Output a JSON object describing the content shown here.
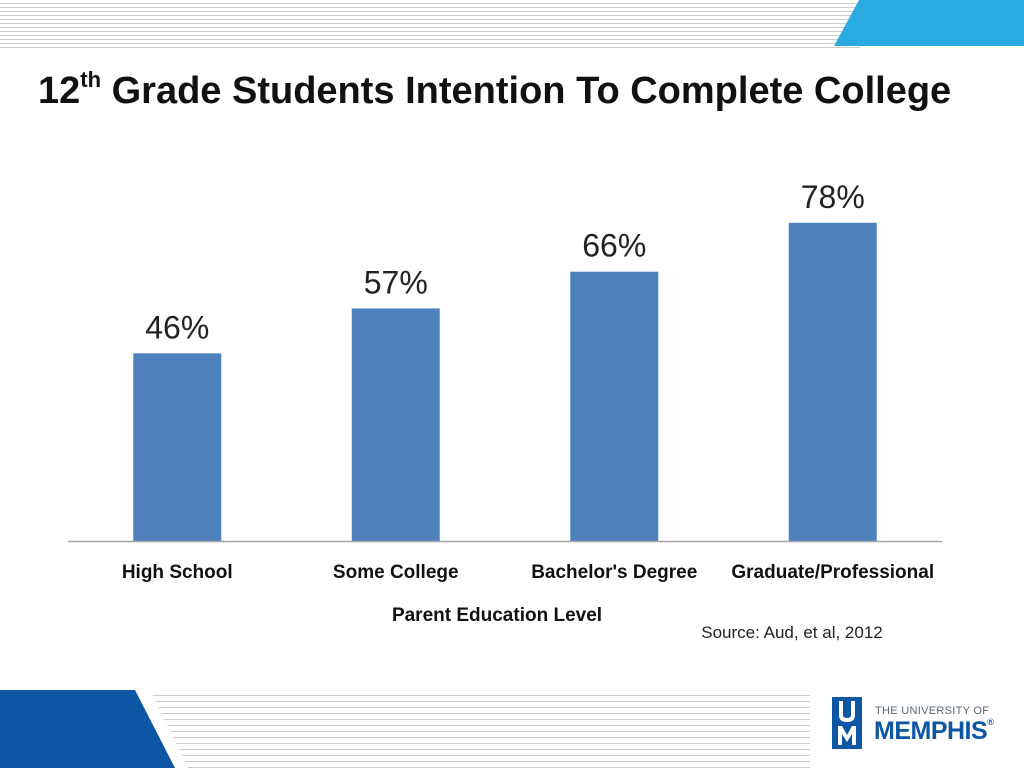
{
  "slide": {
    "title_prefix": "12",
    "title_sup": "th",
    "title_rest": " Grade Students Intention To Complete College",
    "source": "Source: Aud, et al, 2012"
  },
  "logo": {
    "line1": "THE UNIVERSITY OF",
    "line2": "MEMPHIS",
    "registered": "®",
    "monogram": "UM"
  },
  "colors": {
    "bar": "#4f81bd",
    "accent_top": "#29abe2",
    "accent_bottom": "#0d56a4"
  },
  "chart_data": {
    "type": "bar",
    "title": "12th Grade Students Intention To Complete College",
    "categories": [
      "High School",
      "Some College",
      "Bachelor's Degree",
      "Graduate/Professional"
    ],
    "values": [
      46,
      57,
      66,
      78
    ],
    "value_labels": [
      "46%",
      "57%",
      "66%",
      "78%"
    ],
    "xlabel": "Parent Education Level",
    "ylabel": "",
    "ylim": [
      0,
      100
    ],
    "grid": false,
    "legend": "none"
  }
}
